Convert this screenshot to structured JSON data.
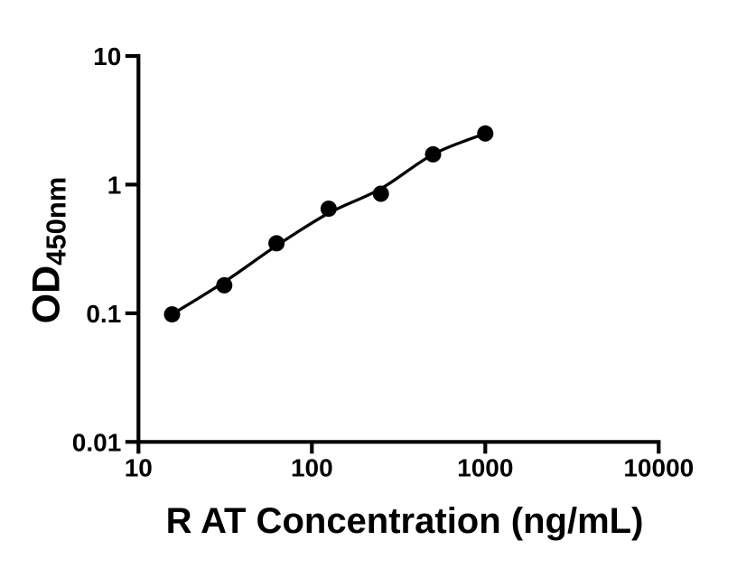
{
  "figure": {
    "background": "#ffffff",
    "ink_color": "#000000"
  },
  "chart_data": {
    "type": "scatter",
    "title": "",
    "xlabel": "R AT Concentration (ng/mL)",
    "ylabel_main": "OD",
    "ylabel_sub": "450nm",
    "x_scale": "log10",
    "y_scale": "log10",
    "xlim": [
      10,
      10000
    ],
    "ylim": [
      0.01,
      10
    ],
    "x_ticks": [
      10,
      100,
      1000,
      10000
    ],
    "x_tick_labels": [
      "10",
      "100",
      "1000",
      "10000"
    ],
    "y_ticks": [
      10,
      1,
      0.1,
      0.01
    ],
    "y_tick_labels": [
      "10",
      "1",
      "0.1",
      "0.01"
    ],
    "grid": false,
    "legend": null,
    "series": [
      {
        "name": "standard-points",
        "marker": "filled-circle",
        "color": "#000000",
        "x": [
          15.625,
          31.25,
          62.5,
          125,
          250,
          500,
          1000
        ],
        "y": [
          0.098,
          0.165,
          0.35,
          0.65,
          0.85,
          1.72,
          2.5
        ]
      }
    ],
    "fit_curve": {
      "name": "standard-curve-fit",
      "color": "#000000",
      "x": [
        15.625,
        31.25,
        62.5,
        125,
        250,
        500,
        1000
      ],
      "y": [
        0.098,
        0.175,
        0.335,
        0.6,
        0.93,
        1.72,
        2.5
      ]
    }
  }
}
